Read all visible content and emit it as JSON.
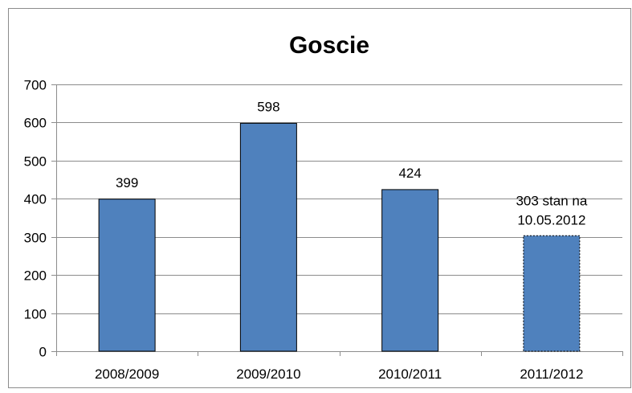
{
  "chart_data": {
    "type": "bar",
    "title": "Goscie",
    "categories": [
      "2008/2009",
      "2009/2010",
      "2010/2011",
      "2011/2012"
    ],
    "values": [
      399,
      598,
      424,
      303
    ],
    "data_labels": [
      "399",
      "598",
      "424",
      [
        "303 stan na",
        "10.05.2012"
      ]
    ],
    "ylim": [
      0,
      700
    ],
    "yticks": [
      0,
      100,
      200,
      300,
      400,
      500,
      600,
      700
    ],
    "grid": true,
    "legend": "none",
    "colors": {
      "bar_fill": "#4f81bd",
      "bar_stroke": "#000000",
      "grid": "#8c8c8c",
      "axis": "#8c8c8c"
    },
    "bar_styles": [
      "solid",
      "solid",
      "solid",
      "dashed"
    ]
  }
}
